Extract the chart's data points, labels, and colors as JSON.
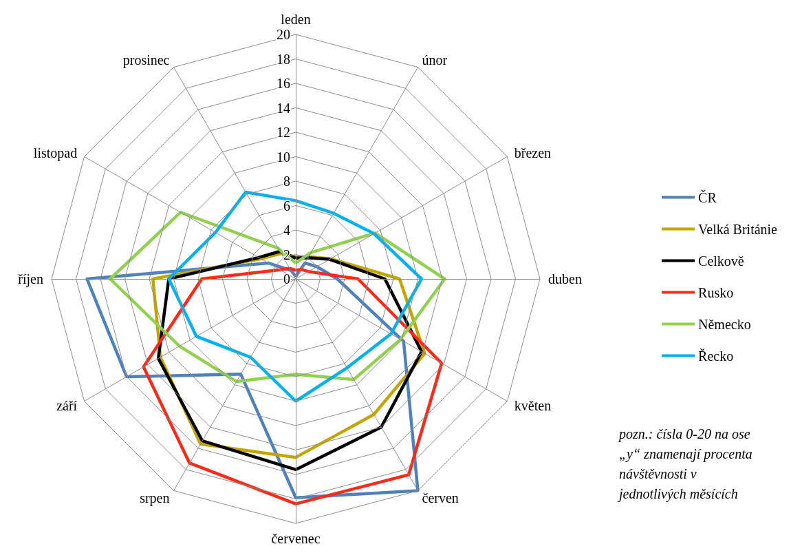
{
  "chart_data": {
    "type": "radar",
    "categories": [
      "leden",
      "únor",
      "březen",
      "duben",
      "květen",
      "červen",
      "červenec",
      "srpen",
      "září",
      "říjen",
      "listopad",
      "prosinec"
    ],
    "series": [
      {
        "name": "ČR",
        "color": "#4f81bd",
        "values": [
          0.2,
          1.5,
          2.0,
          3.4,
          10.2,
          20.0,
          17.9,
          9.0,
          16.0,
          17.1,
          2.6,
          0.8
        ]
      },
      {
        "name": "Velká Británie",
        "color": "#c4a500",
        "values": [
          1.8,
          2.1,
          3.3,
          8.5,
          12.2,
          12.8,
          14.6,
          15.6,
          12.8,
          11.7,
          3.3,
          2.4
        ]
      },
      {
        "name": "Celkově",
        "color": "#000000",
        "values": [
          1.7,
          2.0,
          3.2,
          7.3,
          11.9,
          14.0,
          15.6,
          15.3,
          13.0,
          10.4,
          3.5,
          2.6
        ]
      },
      {
        "name": "Rusko",
        "color": "#ff2a1a",
        "values": [
          0.7,
          0.9,
          1.2,
          5.1,
          13.8,
          18.5,
          18.4,
          17.4,
          14.4,
          7.7,
          1.5,
          1.0
        ]
      },
      {
        "name": "Německo",
        "color": "#92d050",
        "values": [
          1.3,
          2.5,
          7.5,
          12.2,
          9.9,
          9.5,
          7.8,
          9.7,
          11.0,
          15.2,
          10.9,
          2.9
        ]
      },
      {
        "name": "Řecko",
        "color": "#00b0f0",
        "values": [
          6.4,
          6.2,
          7.4,
          10.3,
          9.0,
          8.4,
          10.0,
          7.4,
          9.4,
          10.4,
          7.6,
          8.2
        ]
      }
    ],
    "ylim": [
      0,
      20
    ],
    "yticks": [
      0,
      2,
      4,
      6,
      8,
      10,
      12,
      14,
      16,
      18,
      20
    ],
    "grid": true,
    "legend": "right",
    "marker": "none",
    "line_style": "solid",
    "annotations": [
      "pozn.: čísla 0-20 na ose „y“ znamenají procenta návštěvnosti v jednotlivých měsících"
    ]
  }
}
